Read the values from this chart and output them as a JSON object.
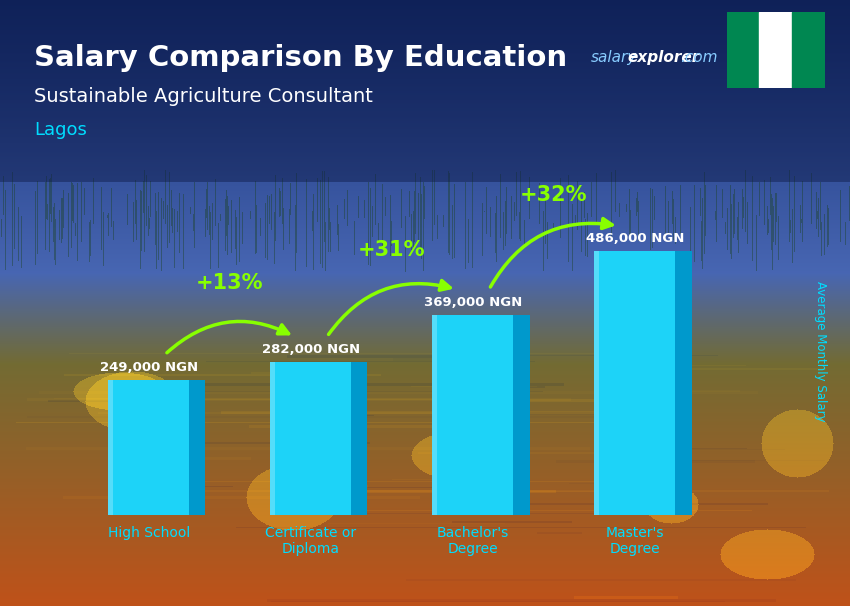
{
  "title": "Salary Comparison By Education",
  "subtitle": "Sustainable Agriculture Consultant",
  "location": "Lagos",
  "ylabel": "Average Monthly Salary",
  "watermark_salary": "salary",
  "watermark_explorer": "explorer",
  "watermark_com": ".com",
  "categories": [
    "High School",
    "Certificate or\nDiploma",
    "Bachelor's\nDegree",
    "Master's\nDegree"
  ],
  "values": [
    249000,
    282000,
    369000,
    486000
  ],
  "value_labels": [
    "249,000 NGN",
    "282,000 NGN",
    "369,000 NGN",
    "486,000 NGN"
  ],
  "pct_labels": [
    "+13%",
    "+31%",
    "+32%"
  ],
  "bar_color_face": "#1DD3F8",
  "bar_color_side": "#0099CC",
  "bar_color_top": "#88EEFF",
  "title_color": "#FFFFFF",
  "subtitle_color": "#FFFFFF",
  "location_color": "#00DDFF",
  "value_label_color": "#FFFFFF",
  "pct_color": "#88FF00",
  "watermark_salary_color": "#88CCFF",
  "watermark_explorer_color": "#FFFFFF",
  "xtick_color": "#00DDFF",
  "ylabel_color": "#00DDFF",
  "ylim": [
    0,
    580000
  ],
  "figsize": [
    8.5,
    6.06
  ],
  "dpi": 100
}
